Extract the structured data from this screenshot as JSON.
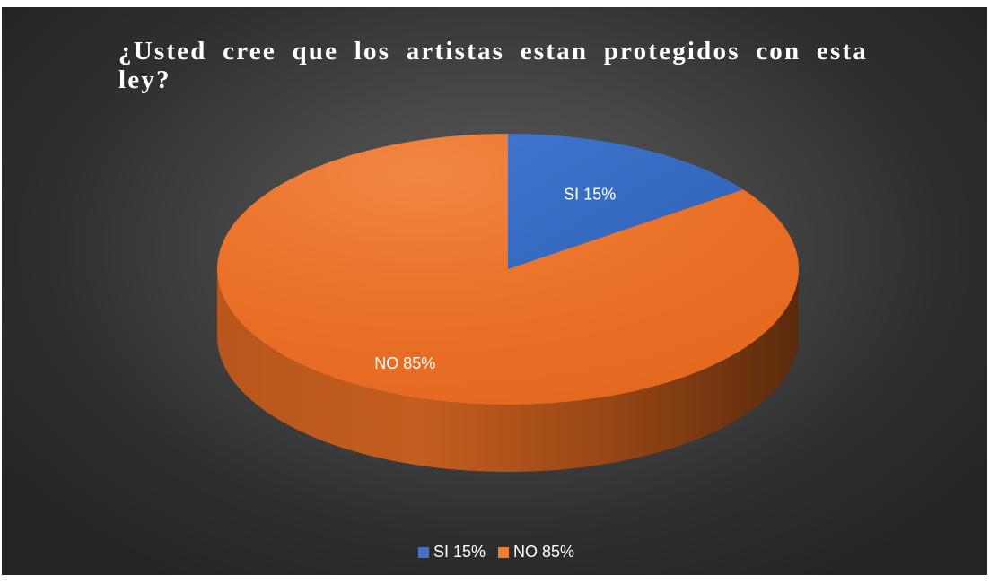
{
  "chart_data": {
    "type": "pie",
    "title": "¿Usted cree que los artistas estan protegidos con esta ley?",
    "categories": [
      "SI 15%",
      "NO 85%"
    ],
    "values": [
      15,
      85
    ],
    "colors": [
      "#4472C4",
      "#ED7D31"
    ],
    "data_labels": [
      "SI 15%",
      "NO 85%"
    ],
    "legend": {
      "position": "bottom",
      "entries": [
        "SI 15%",
        "NO 85%"
      ]
    },
    "style": "3d",
    "background": "#3a3a3a"
  }
}
